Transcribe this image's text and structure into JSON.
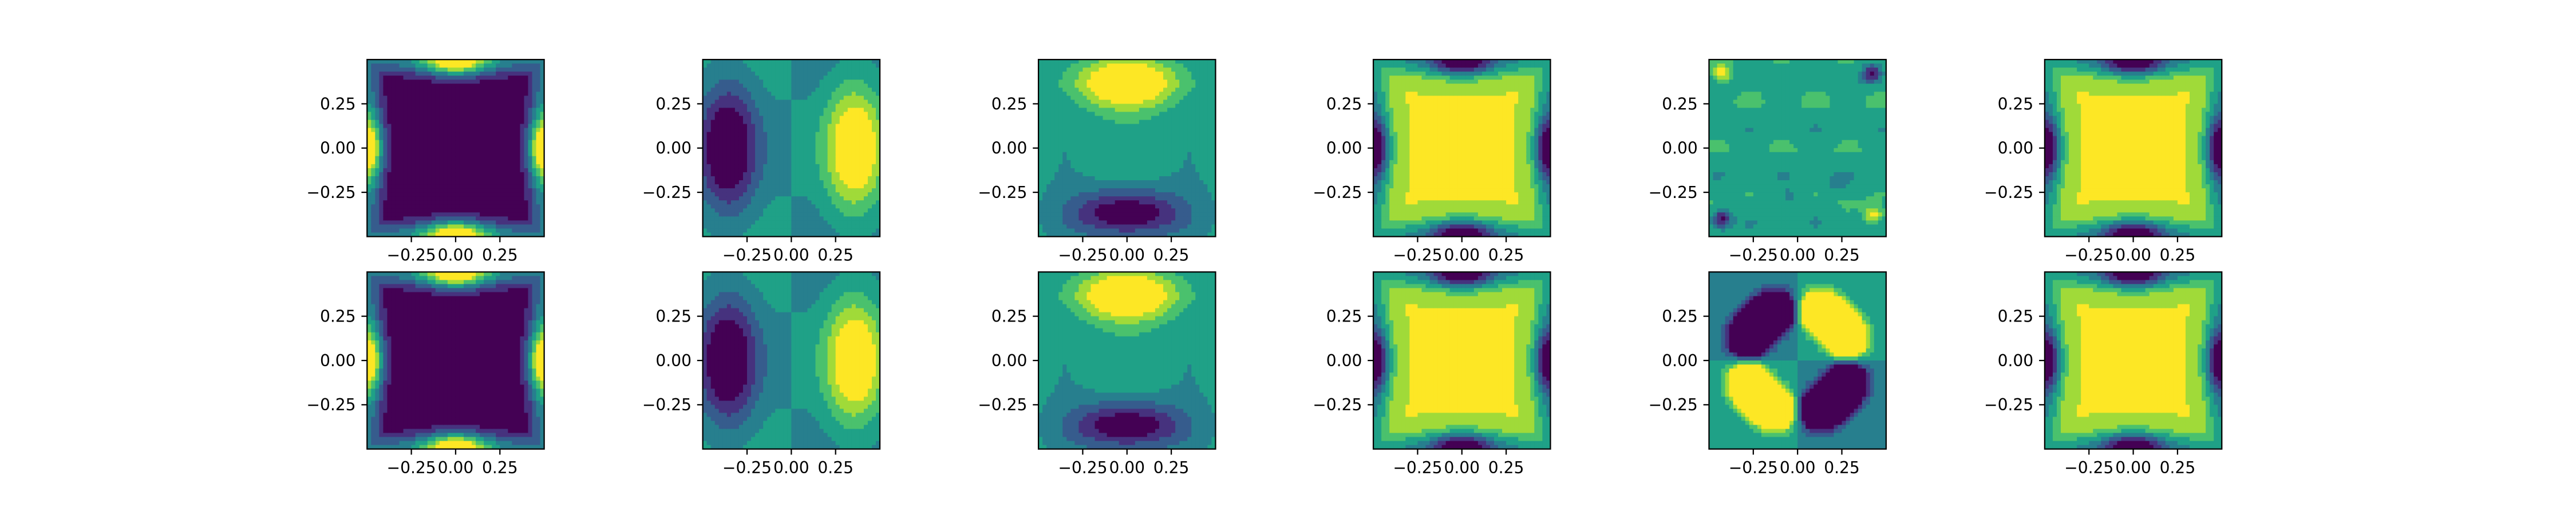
{
  "chart_data": {
    "type": "heatmap",
    "layout": {
      "rows": 2,
      "cols": 6
    },
    "colormap": "viridis",
    "colormap_stops": [
      "#440154",
      "#46327e",
      "#365c8d",
      "#277f8e",
      "#1fa187",
      "#4ac16d",
      "#a0da39",
      "#fde725"
    ],
    "xlim": [
      -0.5,
      0.5
    ],
    "ylim": [
      -0.5,
      0.5
    ],
    "x_tick_values": [
      -0.25,
      0.0,
      0.25
    ],
    "y_tick_values": [
      0.25,
      0.0,
      -0.25
    ],
    "x_tick_labels": [
      "−0.25",
      "0.00",
      "0.25"
    ],
    "y_tick_labels": [
      "0.25",
      "0.00",
      "−0.25"
    ],
    "grid": false,
    "panels": [
      {
        "row": 0,
        "col": 0,
        "pattern": "edge",
        "polarity": 1
      },
      {
        "row": 0,
        "col": 1,
        "pattern": "dipole_x",
        "polarity": 1
      },
      {
        "row": 0,
        "col": 2,
        "pattern": "dipole_y",
        "polarity": 1
      },
      {
        "row": 0,
        "col": 3,
        "pattern": "edge",
        "polarity": -1
      },
      {
        "row": 0,
        "col": 4,
        "pattern": "noise",
        "polarity": 1
      },
      {
        "row": 0,
        "col": 5,
        "pattern": "edge",
        "polarity": -1
      },
      {
        "row": 1,
        "col": 0,
        "pattern": "edge",
        "polarity": 1
      },
      {
        "row": 1,
        "col": 1,
        "pattern": "dipole_x",
        "polarity": 1
      },
      {
        "row": 1,
        "col": 2,
        "pattern": "dipole_y",
        "polarity": 1
      },
      {
        "row": 1,
        "col": 3,
        "pattern": "edge",
        "polarity": -1
      },
      {
        "row": 1,
        "col": 4,
        "pattern": "quadrupole",
        "polarity": 1
      },
      {
        "row": 1,
        "col": 5,
        "pattern": "edge",
        "polarity": -1
      }
    ]
  }
}
